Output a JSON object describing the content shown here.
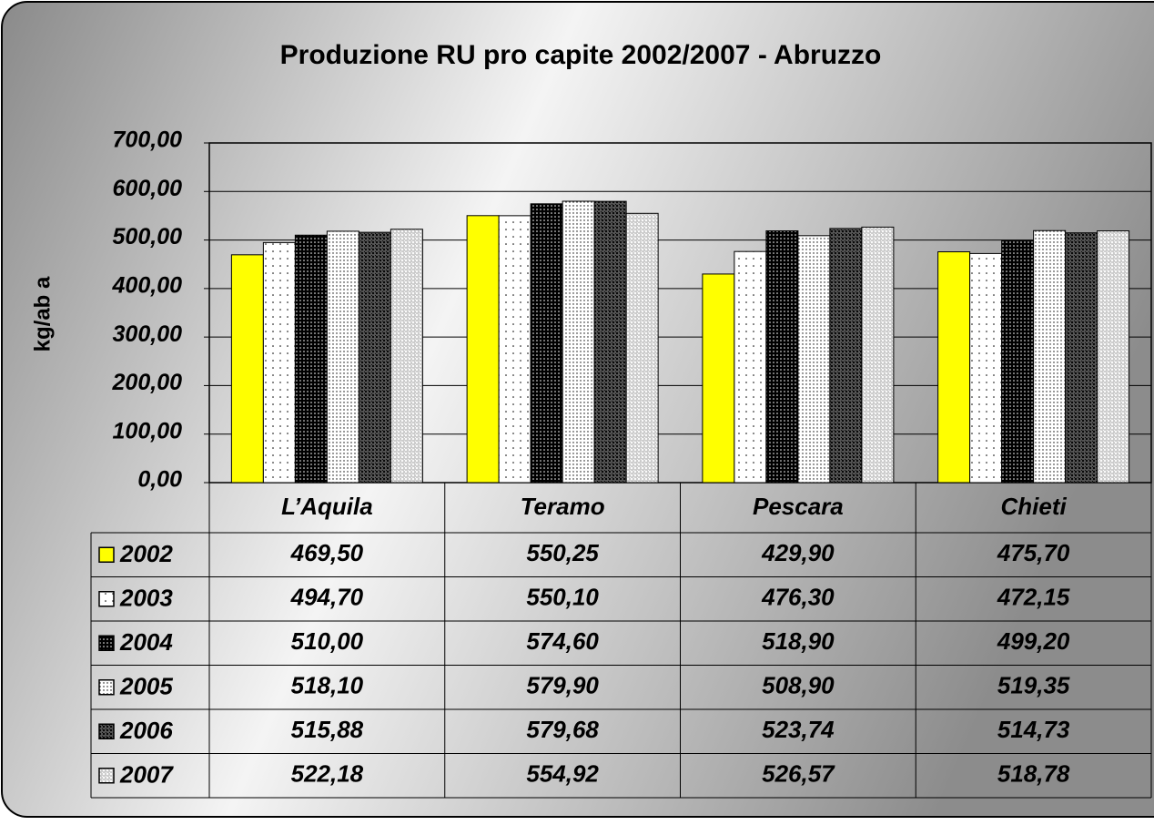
{
  "chart_data": {
    "type": "bar",
    "title": "Produzione RU pro capite 2002/2007 - Abruzzo",
    "y_label": "kg/ab a",
    "categories": [
      "L’Aquila",
      "Teramo",
      "Pescara",
      "Chieti"
    ],
    "series": [
      {
        "name": "2002",
        "color": "#ffff00",
        "values": [
          469.5,
          550.25,
          429.9,
          475.7
        ],
        "value_labels": [
          "469,50",
          "550,25",
          "429,90",
          "475,70"
        ]
      },
      {
        "name": "2003",
        "color": "#ffffff",
        "values": [
          494.7,
          550.1,
          476.3,
          472.15
        ],
        "value_labels": [
          "494,70",
          "550,10",
          "476,30",
          "472,15"
        ]
      },
      {
        "name": "2004",
        "color": "#000000",
        "values": [
          510.0,
          574.6,
          518.9,
          499.2
        ],
        "value_labels": [
          "510,00",
          "574,60",
          "518,90",
          "499,20"
        ]
      },
      {
        "name": "2005",
        "color": "#ffffff",
        "values": [
          518.1,
          579.9,
          508.9,
          519.35
        ],
        "value_labels": [
          "518,10",
          "579,90",
          "508,90",
          "519,35"
        ]
      },
      {
        "name": "2006",
        "color": "#555555",
        "values": [
          515.88,
          579.68,
          523.74,
          514.73
        ],
        "value_labels": [
          "515,88",
          "579,68",
          "523,74",
          "514,73"
        ]
      },
      {
        "name": "2007",
        "color": "#cccccc",
        "values": [
          522.18,
          554.92,
          526.57,
          518.78
        ],
        "value_labels": [
          "522,18",
          "554,92",
          "526,57",
          "518,78"
        ]
      }
    ],
    "ylim": [
      0,
      700
    ],
    "yticks": [
      {
        "value": 0,
        "label": "0,00"
      },
      {
        "value": 100,
        "label": "100,00"
      },
      {
        "value": 200,
        "label": "200,00"
      },
      {
        "value": 300,
        "label": "300,00"
      },
      {
        "value": 400,
        "label": "400,00"
      },
      {
        "value": 500,
        "label": "500,00"
      },
      {
        "value": 600,
        "label": "600,00"
      },
      {
        "value": 700,
        "label": "700,00"
      }
    ],
    "grid": true
  }
}
